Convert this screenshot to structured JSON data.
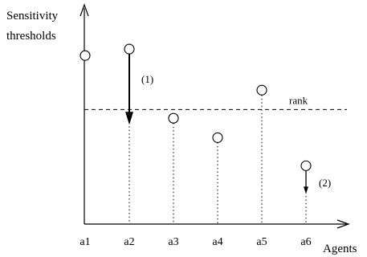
{
  "y_axis_label": [
    "Sensitivity",
    "thresholds"
  ],
  "x_axis_label": "Agents",
  "rank_label": "rank",
  "agents": [
    {
      "name": "a1",
      "threshold": 0.78,
      "dropline": false
    },
    {
      "name": "a2",
      "threshold": 0.81,
      "dropline": true
    },
    {
      "name": "a3",
      "threshold": 0.49,
      "dropline": true
    },
    {
      "name": "a4",
      "threshold": 0.4,
      "dropline": true
    },
    {
      "name": "a5",
      "threshold": 0.62,
      "dropline": true
    },
    {
      "name": "a6",
      "threshold": 0.27,
      "dropline": true
    }
  ],
  "rank_value": 0.53,
  "adjustments": [
    {
      "agent": "a2",
      "label": "(1)",
      "to": 0.46
    },
    {
      "agent": "a6",
      "label": "(2)",
      "to": 0.14
    }
  ]
}
